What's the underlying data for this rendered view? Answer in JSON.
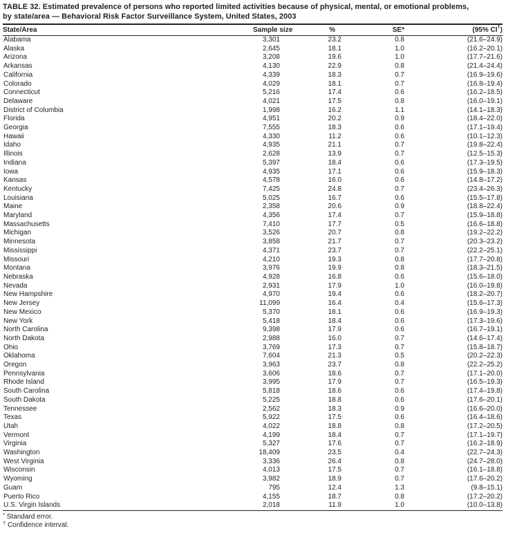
{
  "page": {
    "title_line1": "TABLE 32. Estimated prevalence of persons who reported limited activities because of physical, mental, or emotional problems,",
    "title_line2": "by state/area — Behavioral Risk Factor Surveillance System, United States, 2003"
  },
  "table": {
    "columns": {
      "state": "State/Area",
      "sample": "Sample size",
      "pct": "%",
      "se": "SE*",
      "ci_prefix": "(95% CI",
      "ci_dagger": "†",
      "ci_suffix": ")"
    },
    "rows": [
      {
        "state": "Alabama",
        "sample": "3,301",
        "pct": "23.2",
        "se": "0.8",
        "ci": "(21.6–24.9)"
      },
      {
        "state": "Alaska",
        "sample": "2,645",
        "pct": "18.1",
        "se": "1.0",
        "ci": "(16.2–20.1)"
      },
      {
        "state": "Arizona",
        "sample": "3,208",
        "pct": "19.6",
        "se": "1.0",
        "ci": "(17.7–21.6)"
      },
      {
        "state": "Arkansas",
        "sample": "4,130",
        "pct": "22.9",
        "se": "0.8",
        "ci": "(21.4–24.4)"
      },
      {
        "state": "California",
        "sample": "4,339",
        "pct": "18.3",
        "se": "0.7",
        "ci": "(16.9–19.6)"
      },
      {
        "state": "Colorado",
        "sample": "4,029",
        "pct": "18.1",
        "se": "0.7",
        "ci": "(16.8–19.4)"
      },
      {
        "state": "Connecticut",
        "sample": "5,216",
        "pct": "17.4",
        "se": "0.6",
        "ci": "(16.2–18.5)"
      },
      {
        "state": "Delaware",
        "sample": "4,021",
        "pct": "17.5",
        "se": "0.8",
        "ci": "(16.0–19.1)"
      },
      {
        "state": "District of Columbia",
        "sample": "1,998",
        "pct": "16.2",
        "se": "1.1",
        "ci": "(14.1–18.3)"
      },
      {
        "state": "Florida",
        "sample": "4,951",
        "pct": "20.2",
        "se": "0.9",
        "ci": "(18.4–22.0)"
      },
      {
        "state": "Georgia",
        "sample": "7,555",
        "pct": "18.3",
        "se": "0.6",
        "ci": "(17.1–19.4)"
      },
      {
        "state": "Hawaii",
        "sample": "4,330",
        "pct": "11.2",
        "se": "0.6",
        "ci": "(10.1–12.3)"
      },
      {
        "state": "Idaho",
        "sample": "4,935",
        "pct": "21.1",
        "se": "0.7",
        "ci": "(19.8–22.4)"
      },
      {
        "state": "Illinois",
        "sample": "2,628",
        "pct": "13.9",
        "se": "0.7",
        "ci": "(12.5–15.3)"
      },
      {
        "state": "Indiana",
        "sample": "5,397",
        "pct": "18.4",
        "se": "0.6",
        "ci": "(17.3–19.5)"
      },
      {
        "state": "Iowa",
        "sample": "4,935",
        "pct": "17.1",
        "se": "0.6",
        "ci": "(15.9–18.3)"
      },
      {
        "state": "Kansas",
        "sample": "4,578",
        "pct": "16.0",
        "se": "0.6",
        "ci": "(14.8–17.2)"
      },
      {
        "state": "Kentucky",
        "sample": "7,425",
        "pct": "24.8",
        "se": "0.7",
        "ci": "(23.4–26.3)"
      },
      {
        "state": "Louisiana",
        "sample": "5,025",
        "pct": "16.7",
        "se": "0.6",
        "ci": "(15.5–17.8)"
      },
      {
        "state": "Maine",
        "sample": "2,358",
        "pct": "20.6",
        "se": "0.9",
        "ci": "(18.8–22.4)"
      },
      {
        "state": "Maryland",
        "sample": "4,356",
        "pct": "17.4",
        "se": "0.7",
        "ci": "(15.9–18.8)"
      },
      {
        "state": "Massachusetts",
        "sample": "7,410",
        "pct": "17.7",
        "se": "0.5",
        "ci": "(16.6–18.8)"
      },
      {
        "state": "Michigan",
        "sample": "3,526",
        "pct": "20.7",
        "se": "0.8",
        "ci": "(19.2–22.2)"
      },
      {
        "state": "Minnesota",
        "sample": "3,858",
        "pct": "21.7",
        "se": "0.7",
        "ci": "(20.3–23.2)"
      },
      {
        "state": "Mississippi",
        "sample": "4,371",
        "pct": "23.7",
        "se": "0.7",
        "ci": "(22.2–25.1)"
      },
      {
        "state": "Missouri",
        "sample": "4,210",
        "pct": "19.3",
        "se": "0.8",
        "ci": "(17.7–20.8)"
      },
      {
        "state": "Montana",
        "sample": "3,976",
        "pct": "19.9",
        "se": "0.8",
        "ci": "(18.3–21.5)"
      },
      {
        "state": "Nebraska",
        "sample": "4,928",
        "pct": "16.8",
        "se": "0.6",
        "ci": "(15.6–18.0)"
      },
      {
        "state": "Nevada",
        "sample": "2,931",
        "pct": "17.9",
        "se": "1.0",
        "ci": "(16.0–19.8)"
      },
      {
        "state": "New Hampshire",
        "sample": "4,970",
        "pct": "19.4",
        "se": "0.6",
        "ci": "(18.2–20.7)"
      },
      {
        "state": "New Jersey",
        "sample": "11,099",
        "pct": "16.4",
        "se": "0.4",
        "ci": "(15.6–17.3)"
      },
      {
        "state": "New Mexico",
        "sample": "5,370",
        "pct": "18.1",
        "se": "0.6",
        "ci": "(16.9–19.3)"
      },
      {
        "state": "New York",
        "sample": "5,418",
        "pct": "18.4",
        "se": "0.6",
        "ci": "(17.3–19.6)"
      },
      {
        "state": "North Carolina",
        "sample": "9,398",
        "pct": "17.9",
        "se": "0.6",
        "ci": "(16.7–19.1)"
      },
      {
        "state": "North Dakota",
        "sample": "2,988",
        "pct": "16.0",
        "se": "0.7",
        "ci": "(14.6–17.4)"
      },
      {
        "state": "Ohio",
        "sample": "3,769",
        "pct": "17.3",
        "se": "0.7",
        "ci": "(15.8–18.7)"
      },
      {
        "state": "Oklahoma",
        "sample": "7,604",
        "pct": "21.3",
        "se": "0.5",
        "ci": "(20.2–22.3)"
      },
      {
        "state": "Oregon",
        "sample": "3,963",
        "pct": "23.7",
        "se": "0.8",
        "ci": "(22.2–25.2)"
      },
      {
        "state": "Pennsylvania",
        "sample": "3,606",
        "pct": "18.6",
        "se": "0.7",
        "ci": "(17.1–20.0)"
      },
      {
        "state": "Rhode Island",
        "sample": "3,995",
        "pct": "17.9",
        "se": "0.7",
        "ci": "(16.5–19.3)"
      },
      {
        "state": "South Carolina",
        "sample": "5,818",
        "pct": "18.6",
        "se": "0.6",
        "ci": "(17.4–19.8)"
      },
      {
        "state": "South Dakota",
        "sample": "5,225",
        "pct": "18.8",
        "se": "0.6",
        "ci": "(17.6–20.1)"
      },
      {
        "state": "Tennessee",
        "sample": "2,562",
        "pct": "18.3",
        "se": "0.9",
        "ci": "(16.6–20.0)"
      },
      {
        "state": "Texas",
        "sample": "5,922",
        "pct": "17.5",
        "se": "0.6",
        "ci": "(16.4–18.6)"
      },
      {
        "state": "Utah",
        "sample": "4,022",
        "pct": "18.8",
        "se": "0.8",
        "ci": "(17.2–20.5)"
      },
      {
        "state": "Vermont",
        "sample": "4,199",
        "pct": "18.4",
        "se": "0.7",
        "ci": "(17.1–19.7)"
      },
      {
        "state": "Virginia",
        "sample": "5,327",
        "pct": "17.6",
        "se": "0.7",
        "ci": "(16.2–18.9)"
      },
      {
        "state": "Washington",
        "sample": "18,409",
        "pct": "23.5",
        "se": "0.4",
        "ci": "(22.7–24.3)"
      },
      {
        "state": "West Virginia",
        "sample": "3,336",
        "pct": "26.4",
        "se": "0.8",
        "ci": "(24.7–28.0)"
      },
      {
        "state": "Wisconsin",
        "sample": "4,013",
        "pct": "17.5",
        "se": "0.7",
        "ci": "(16.1–18.8)"
      },
      {
        "state": "Wyoming",
        "sample": "3,982",
        "pct": "18.9",
        "se": "0.7",
        "ci": "(17.6–20.2)"
      },
      {
        "state": "Guam",
        "sample": "795",
        "pct": "12.4",
        "se": "1.3",
        "ci": "(9.8–15.1)"
      },
      {
        "state": "Puerto Rico",
        "sample": "4,155",
        "pct": "18.7",
        "se": "0.8",
        "ci": "(17.2–20.2)"
      },
      {
        "state": "U.S. Virgin Islands",
        "sample": "2,018",
        "pct": "11.9",
        "se": "1.0",
        "ci": "(10.0–13.8)"
      }
    ]
  },
  "footnotes": [
    {
      "marker": "*",
      "text": "Standard error."
    },
    {
      "marker": "†",
      "text": "Confidence interval."
    }
  ]
}
